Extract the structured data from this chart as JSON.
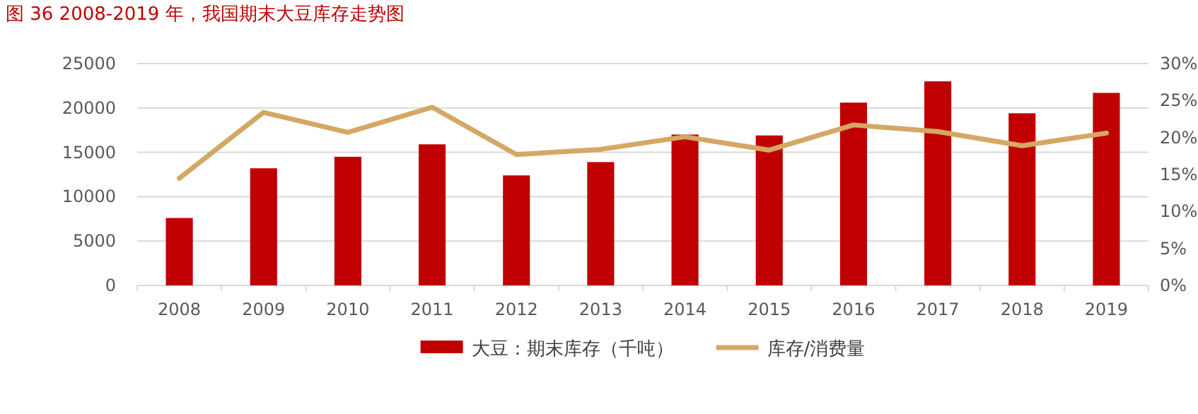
{
  "chart_data": {
    "type": "bar",
    "title": "图 36   2008-2019 年，我国期末大豆库存走势图",
    "categories": [
      "2008",
      "2009",
      "2010",
      "2011",
      "2012",
      "2013",
      "2014",
      "2015",
      "2016",
      "2017",
      "2018",
      "2019"
    ],
    "series": [
      {
        "name": "大豆：期末库存（千吨）",
        "color": "#c00000",
        "values": [
          7600,
          13200,
          14500,
          15900,
          12400,
          13900,
          17000,
          16900,
          20600,
          23000,
          19400,
          21700
        ]
      },
      {
        "name": "库存/消费量",
        "type": "line",
        "axis": "y2",
        "color": "#d4a864",
        "values": [
          14.5,
          23.4,
          20.7,
          24.1,
          17.7,
          18.4,
          20.1,
          18.3,
          21.7,
          20.8,
          18.9,
          20.6
        ]
      }
    ],
    "ylim": [
      0,
      25000
    ],
    "yticks": [
      0,
      5000,
      10000,
      15000,
      20000,
      25000
    ],
    "y2lim": [
      0,
      30
    ],
    "y2ticks": [
      {
        "value": 0,
        "label": "0%"
      },
      {
        "value": 5,
        "label": "5%"
      },
      {
        "value": 10,
        "label": "10%"
      },
      {
        "value": 15,
        "label": "15%"
      },
      {
        "value": 20,
        "label": "20%"
      },
      {
        "value": 25,
        "label": "25%"
      },
      {
        "value": 30,
        "label": "30%"
      }
    ],
    "grid": "y",
    "legend": "bottom"
  }
}
